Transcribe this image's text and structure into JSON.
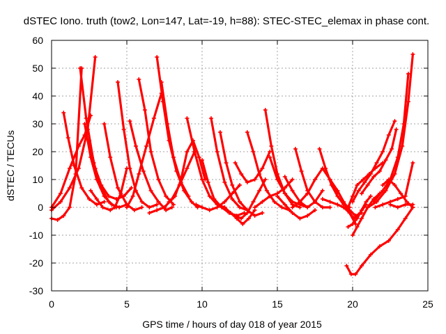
{
  "chart_data": {
    "type": "scatter",
    "title": "dSTEC Iono. truth (tow2, Lon=147, Lat=-19, h=88): STEC-STEC_elemax in phase cont.",
    "xlabel": "GPS time / hours of day 018 of year 2015",
    "ylabel": "dSTEC  / TECUs",
    "xlim": [
      0,
      25
    ],
    "ylim": [
      -30,
      60
    ],
    "xticks": [
      0,
      5,
      10,
      15,
      20,
      25
    ],
    "yticks": [
      -30,
      -20,
      -10,
      0,
      10,
      20,
      30,
      40,
      50,
      60
    ],
    "grid": true,
    "marker": "plus",
    "color": "#ff0000",
    "series": [
      {
        "x": [
          0.0,
          0.4,
          0.8,
          1.2,
          1.6,
          2.0
        ],
        "y": [
          -4,
          -4.5,
          -3,
          0,
          12,
          50
        ]
      },
      {
        "x": [
          0.0,
          0.6,
          1.2,
          1.8,
          2.4,
          2.9
        ],
        "y": [
          -1,
          2,
          7,
          14,
          28,
          54
        ]
      },
      {
        "x": [
          0.0,
          0.6,
          1.2,
          1.8,
          2.2,
          2.6
        ],
        "y": [
          0,
          5,
          14,
          22,
          26,
          33
        ]
      },
      {
        "x": [
          0.8,
          1.1,
          1.5,
          2.0,
          2.5,
          3.0,
          3.5
        ],
        "y": [
          34,
          25,
          15,
          7,
          3,
          1,
          2
        ]
      },
      {
        "x": [
          1.9,
          2.3,
          2.8,
          3.3,
          3.8,
          4.3
        ],
        "y": [
          50,
          32,
          16,
          7,
          2,
          0
        ]
      },
      {
        "x": [
          2.2,
          2.6,
          3.0,
          3.5,
          4.0,
          4.5,
          5.0
        ],
        "y": [
          30,
          18,
          10,
          4,
          1,
          0,
          1
        ]
      },
      {
        "x": [
          2.5,
          2.9,
          3.3,
          3.8,
          4.3,
          4.8,
          5.3
        ],
        "y": [
          24,
          14,
          8,
          4,
          3,
          4,
          7
        ]
      },
      {
        "x": [
          2.6,
          3.0,
          3.4,
          3.9,
          4.2,
          4.6,
          5.0
        ],
        "y": [
          6,
          3,
          0,
          -1,
          0,
          5,
          14
        ]
      },
      {
        "x": [
          3.5,
          3.9,
          4.4,
          5.0,
          5.5,
          6.0
        ],
        "y": [
          30,
          18,
          7,
          1,
          -1,
          0
        ]
      },
      {
        "x": [
          4.4,
          4.8,
          5.2,
          5.6,
          6.0,
          6.5,
          7.0
        ],
        "y": [
          45,
          28,
          14,
          6,
          2,
          0,
          1
        ]
      },
      {
        "x": [
          5.0,
          5.4,
          5.8,
          6.3,
          6.8,
          7.3
        ],
        "y": [
          0,
          4,
          12,
          22,
          32,
          41
        ]
      },
      {
        "x": [
          5.2,
          5.6,
          6.1,
          6.6,
          7.1,
          7.6,
          8.0
        ],
        "y": [
          31,
          22,
          13,
          6,
          2,
          -1,
          0
        ]
      },
      {
        "x": [
          5.8,
          6.2,
          6.6,
          7.1,
          7.6,
          8.1
        ],
        "y": [
          46,
          35,
          20,
          10,
          4,
          1
        ]
      },
      {
        "x": [
          7.0,
          7.4,
          7.8,
          8.3,
          8.8,
          9.3,
          9.7
        ],
        "y": [
          54,
          38,
          24,
          13,
          6,
          2,
          0
        ]
      },
      {
        "x": [
          7.3,
          7.7,
          8.1,
          8.6,
          9.1
        ],
        "y": [
          45,
          30,
          18,
          9,
          4
        ]
      },
      {
        "x": [
          6.5,
          7.0,
          7.5,
          8.0,
          8.5,
          9.0,
          9.5
        ],
        "y": [
          -2,
          -1,
          0,
          3,
          8,
          14,
          20
        ]
      },
      {
        "x": [
          7.8,
          8.2,
          8.6,
          9.0,
          9.4,
          9.8,
          10.2
        ],
        "y": [
          2,
          4,
          10,
          20,
          24,
          18,
          10
        ]
      },
      {
        "x": [
          9.0,
          9.5,
          10.0,
          10.5,
          11.0,
          11.5
        ],
        "y": [
          32,
          20,
          10,
          4,
          1,
          0
        ]
      },
      {
        "x": [
          9.6,
          10.0,
          10.5,
          11.0,
          11.5,
          12.0,
          12.5
        ],
        "y": [
          1,
          0,
          -1,
          0,
          2,
          5,
          8
        ]
      },
      {
        "x": [
          10.0,
          10.4,
          10.8,
          11.3,
          11.8,
          12.3,
          12.8
        ],
        "y": [
          17,
          9,
          3,
          0,
          -2,
          -3,
          -2
        ]
      },
      {
        "x": [
          10.6,
          11.0,
          11.5,
          12.0,
          12.5,
          13.0
        ],
        "y": [
          32,
          20,
          9,
          3,
          0,
          -1
        ]
      },
      {
        "x": [
          11.2,
          11.6,
          12.0,
          12.5,
          13.0,
          13.5,
          14.0
        ],
        "y": [
          27,
          16,
          8,
          2,
          -1,
          -3,
          -2
        ]
      },
      {
        "x": [
          11.5,
          11.9,
          12.3,
          12.7,
          13.1,
          13.5
        ],
        "y": [
          0,
          -2,
          -4,
          -6,
          -4,
          -1
        ]
      },
      {
        "x": [
          12.2,
          12.6,
          13.0,
          13.4,
          13.8,
          14.2
        ],
        "y": [
          -3,
          -4,
          -2,
          2,
          6,
          10
        ]
      },
      {
        "x": [
          12.2,
          12.6,
          13.0,
          13.5,
          14.0,
          14.5
        ],
        "y": [
          16,
          12,
          9,
          10,
          14,
          20
        ]
      },
      {
        "x": [
          13.0,
          13.4,
          13.8,
          14.3,
          14.8,
          15.3,
          15.8
        ],
        "y": [
          27,
          20,
          12,
          6,
          2,
          0,
          -1
        ]
      },
      {
        "x": [
          14.2,
          14.6,
          15.0,
          15.5,
          16.0,
          16.5
        ],
        "y": [
          35,
          22,
          12,
          5,
          1,
          0
        ]
      },
      {
        "x": [
          13.5,
          14.0,
          14.5,
          15.0,
          15.5,
          16.0
        ],
        "y": [
          0,
          2,
          4,
          5,
          7,
          10
        ]
      },
      {
        "x": [
          14.5,
          15.0,
          15.5,
          16.0,
          16.5,
          17.0
        ],
        "y": [
          18,
          10,
          5,
          2,
          1,
          0
        ]
      },
      {
        "x": [
          15.0,
          15.5,
          16.0,
          16.5,
          17.0,
          17.5
        ],
        "y": [
          4,
          1,
          -2,
          -4,
          -3,
          -1
        ]
      },
      {
        "x": [
          15.5,
          16.0,
          16.5,
          17.0,
          17.5,
          18.0
        ],
        "y": [
          11,
          6,
          2,
          0,
          2,
          6
        ]
      },
      {
        "x": [
          16.2,
          16.6,
          17.0,
          17.5,
          18.0,
          18.5
        ],
        "y": [
          21,
          13,
          6,
          2,
          0,
          0
        ]
      },
      {
        "x": [
          16.0,
          16.5,
          17.0,
          17.5,
          18.0,
          18.5,
          19.0
        ],
        "y": [
          0,
          2,
          5,
          10,
          14,
          10,
          5
        ]
      },
      {
        "x": [
          17.8,
          18.2,
          18.6,
          19.0,
          19.4,
          19.8
        ],
        "y": [
          21,
          14,
          8,
          4,
          1,
          0
        ]
      },
      {
        "x": [
          18.0,
          18.5,
          19.0,
          19.4,
          19.8,
          20.2
        ],
        "y": [
          3,
          2,
          1,
          0,
          -2,
          -6
        ]
      },
      {
        "x": [
          18.5,
          19.0,
          19.4,
          19.8,
          20.2,
          20.6
        ],
        "y": [
          10,
          6,
          2,
          -1,
          -3,
          -2
        ]
      },
      {
        "x": [
          19.5,
          19.8,
          20.1,
          20.5,
          20.9
        ],
        "y": [
          0,
          -2,
          -4,
          -2,
          1
        ]
      },
      {
        "x": [
          19.7,
          20.0,
          20.3,
          20.6,
          20.9,
          21.2
        ],
        "y": [
          -7,
          -6,
          -4,
          -1,
          2,
          4
        ]
      },
      {
        "x": [
          20.0,
          20.3,
          20.6,
          21.0,
          21.4,
          21.8
        ],
        "y": [
          -10,
          -7,
          -4,
          0,
          3,
          5
        ]
      },
      {
        "x": [
          19.7,
          20.0,
          20.3,
          20.7,
          21.1,
          21.5,
          22.0
        ],
        "y": [
          0,
          4,
          8,
          10,
          12,
          14,
          16
        ]
      },
      {
        "x": [
          20.0,
          20.4,
          20.8,
          21.2,
          21.6,
          22.0,
          22.4,
          22.8
        ],
        "y": [
          2,
          6,
          9,
          12,
          16,
          20,
          26,
          31
        ]
      },
      {
        "x": [
          20.6,
          21.0,
          21.4,
          21.8,
          22.2,
          22.6,
          22.9
        ],
        "y": [
          5,
          8,
          11,
          13,
          17,
          21,
          28
        ]
      },
      {
        "x": [
          21.0,
          21.6,
          22.2,
          22.8,
          23.3,
          23.7,
          24.0
        ],
        "y": [
          0,
          2,
          6,
          12,
          22,
          38,
          55
        ]
      },
      {
        "x": [
          21.4,
          22.0,
          22.5,
          23.0,
          23.4,
          23.7
        ],
        "y": [
          2,
          6,
          10,
          18,
          30,
          48
        ]
      },
      {
        "x": [
          21.5,
          22.0,
          22.5,
          23.0,
          23.5,
          24.0
        ],
        "y": [
          0,
          1,
          2,
          3,
          4,
          16
        ]
      },
      {
        "x": [
          22.0,
          22.4,
          22.8,
          23.2,
          23.6,
          24.0
        ],
        "y": [
          8,
          10,
          8,
          5,
          2,
          0
        ]
      },
      {
        "x": [
          22.5,
          23.0,
          23.5,
          24.0
        ],
        "y": [
          1,
          0,
          1,
          1
        ]
      },
      {
        "x": [
          19.6,
          19.9,
          20.2,
          20.6,
          21.2,
          21.8,
          22.4,
          23.0,
          23.5,
          24.0
        ],
        "y": [
          -21,
          -24,
          -24,
          -21,
          -17,
          -14,
          -12,
          -8,
          -4,
          0
        ]
      }
    ]
  }
}
